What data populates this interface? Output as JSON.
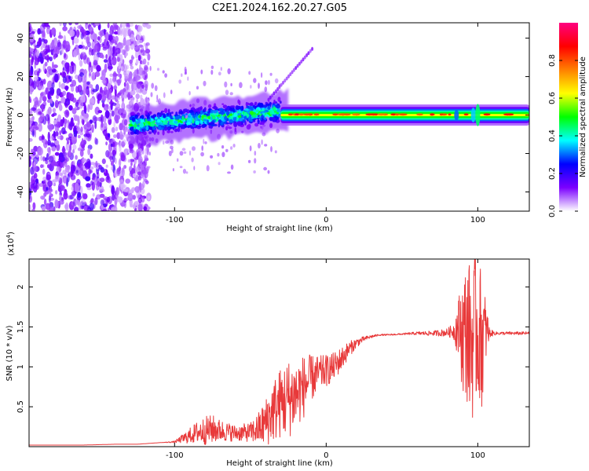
{
  "title": "C2E1.2024.162.20.27.G05",
  "chart_data": [
    {
      "type": "heatmap",
      "name": "spectrogram",
      "xlabel": "Height of straight line (km)",
      "ylabel": "Frequency (Hz)",
      "xlim": [
        -196,
        134
      ],
      "ylim": [
        -50,
        48
      ],
      "x_ticks": [
        -100,
        0,
        100
      ],
      "y_ticks": [
        -40,
        -20,
        0,
        20,
        40
      ],
      "colorbar": {
        "label": "Normalized spectral amplitude",
        "range": [
          0.0,
          1.0
        ],
        "ticks": [
          0.0,
          0.2,
          0.4,
          0.6,
          0.8
        ],
        "colormap": [
          "#ffffff",
          "#7b00ff",
          "#0000ff",
          "#00ffff",
          "#00ff00",
          "#ffff00",
          "#ff8000",
          "#ff0000",
          "#ff0080"
        ]
      },
      "features": [
        {
          "region": "scattered noise",
          "x_range": [
            -196,
            -125
          ],
          "freq_range": [
            -50,
            48
          ],
          "amplitude": 0.1
        },
        {
          "region": "broad signal band",
          "x_range": [
            -130,
            -30
          ],
          "freq_range": [
            -12,
            8
          ],
          "amplitude": 0.35
        },
        {
          "region": "narrow carrier line",
          "x_range": [
            -30,
            134
          ],
          "freq_center": 0,
          "freq_halfwidth": 3,
          "amplitude": 0.6
        }
      ]
    },
    {
      "type": "line",
      "name": "snr",
      "xlabel": "Height of straight line (km)",
      "ylabel": "SNR (10 * v/v)",
      "yscale_label": "(x10",
      "yscale_exp": "4",
      "xlim": [
        -196,
        134
      ],
      "ylim": [
        0.0,
        2.35
      ],
      "x_ticks": [
        -100,
        0,
        100
      ],
      "y_ticks": [
        0.5,
        1.0,
        1.5,
        2.0
      ],
      "series": [
        {
          "name": "SNR",
          "color": "#e8393a",
          "x": [
            -196,
            -180,
            -160,
            -140,
            -125,
            -110,
            -100,
            -92,
            -85,
            -80,
            -75,
            -70,
            -60,
            -50,
            -45,
            -40,
            -35,
            -30,
            -25,
            -20,
            -15,
            -10,
            -5,
            0,
            5,
            10,
            15,
            20,
            25,
            30,
            35,
            40,
            50,
            60,
            70,
            80,
            84,
            88,
            90,
            93,
            96,
            99,
            101,
            103,
            105,
            108,
            112,
            120,
            134
          ],
          "values": [
            0.02,
            0.02,
            0.02,
            0.03,
            0.03,
            0.05,
            0.06,
            0.12,
            0.18,
            0.2,
            0.22,
            0.2,
            0.17,
            0.18,
            0.22,
            0.3,
            0.45,
            0.55,
            0.6,
            0.65,
            0.75,
            0.85,
            0.92,
            0.95,
            1.0,
            1.1,
            1.22,
            1.3,
            1.35,
            1.38,
            1.4,
            1.4,
            1.41,
            1.42,
            1.42,
            1.43,
            1.45,
            1.5,
            1.4,
            1.45,
            1.3,
            1.5,
            1.4,
            1.35,
            1.45,
            1.42,
            1.42,
            1.42,
            1.42
          ],
          "noise_amplitude": [
            0,
            0,
            0,
            0,
            0,
            0,
            0.01,
            0.08,
            0.14,
            0.18,
            0.18,
            0.14,
            0.1,
            0.12,
            0.2,
            0.3,
            0.4,
            0.45,
            0.5,
            0.45,
            0.4,
            0.3,
            0.22,
            0.2,
            0.18,
            0.15,
            0.1,
            0.06,
            0.03,
            0.02,
            0.01,
            0.01,
            0.01,
            0.02,
            0.03,
            0.05,
            0.1,
            0.45,
            0.75,
            0.9,
            1.0,
            1.0,
            0.9,
            0.85,
            0.45,
            0.05,
            0.02,
            0.02,
            0.02
          ]
        }
      ]
    }
  ]
}
